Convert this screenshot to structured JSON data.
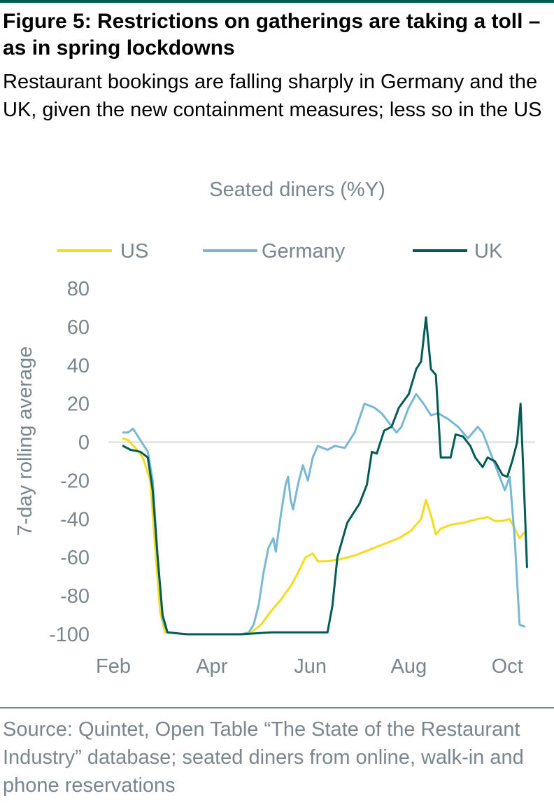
{
  "header": {
    "title": "Figure 5: Restrictions on gatherings are taking a toll – as in spring lockdowns",
    "subtitle": "Restaurant bookings are falling sharply in Germany and the UK, given the new containment measures; less so in the US"
  },
  "footer": {
    "source": "Source: Quintet, Open Table “The State of the Restaurant Industry” database; seated diners from online, walk-in and phone reservations"
  },
  "colors": {
    "rule": "#005c55",
    "text_gray": "#7b868c",
    "zero_line": "#d9d9d9"
  },
  "chart_data": {
    "type": "line",
    "title": "Seated diners (%Y)",
    "ylabel": "7-day rolling average",
    "xlabel": "",
    "ylim": [
      -100,
      80
    ],
    "yticks": [
      80,
      60,
      40,
      20,
      0,
      -20,
      -40,
      -60,
      -80,
      -100
    ],
    "xlim": [
      0,
      8.1
    ],
    "xticks": [
      {
        "label": "Feb",
        "x": 0
      },
      {
        "label": "Apr",
        "x": 2
      },
      {
        "label": "Jun",
        "x": 4
      },
      {
        "label": "Aug",
        "x": 6
      },
      {
        "label": "Oct",
        "x": 8
      }
    ],
    "grid": false,
    "legend_position": "top",
    "series": [
      {
        "name": "US",
        "color": "#f5dc1e",
        "points": [
          [
            0.2,
            2
          ],
          [
            0.3,
            1
          ],
          [
            0.45,
            -3
          ],
          [
            0.6,
            -8
          ],
          [
            0.75,
            -20
          ],
          [
            0.85,
            -55
          ],
          [
            0.95,
            -88
          ],
          [
            1.05,
            -99
          ],
          [
            1.5,
            -100
          ],
          [
            2.6,
            -100
          ],
          [
            2.8,
            -99
          ],
          [
            3.0,
            -95
          ],
          [
            3.2,
            -88
          ],
          [
            3.4,
            -82
          ],
          [
            3.6,
            -75
          ],
          [
            3.75,
            -68
          ],
          [
            3.9,
            -60
          ],
          [
            4.05,
            -58
          ],
          [
            4.15,
            -62
          ],
          [
            4.35,
            -62
          ],
          [
            4.6,
            -61
          ],
          [
            4.9,
            -59
          ],
          [
            5.2,
            -56
          ],
          [
            5.5,
            -53
          ],
          [
            5.8,
            -50
          ],
          [
            6.05,
            -46
          ],
          [
            6.25,
            -40
          ],
          [
            6.35,
            -30
          ],
          [
            6.45,
            -38
          ],
          [
            6.55,
            -48
          ],
          [
            6.65,
            -45
          ],
          [
            6.85,
            -43
          ],
          [
            7.1,
            -42
          ],
          [
            7.4,
            -40
          ],
          [
            7.6,
            -39
          ],
          [
            7.75,
            -41
          ],
          [
            7.9,
            -41
          ],
          [
            8.05,
            -40
          ],
          [
            8.15,
            -45
          ],
          [
            8.25,
            -50
          ],
          [
            8.35,
            -47
          ]
        ]
      },
      {
        "name": "Germany",
        "color": "#79b8d4",
        "points": [
          [
            0.2,
            5
          ],
          [
            0.3,
            5
          ],
          [
            0.4,
            7
          ],
          [
            0.5,
            3
          ],
          [
            0.6,
            -1
          ],
          [
            0.7,
            -5
          ],
          [
            0.8,
            -20
          ],
          [
            0.9,
            -60
          ],
          [
            1.0,
            -92
          ],
          [
            1.1,
            -99
          ],
          [
            1.5,
            -100
          ],
          [
            2.6,
            -100
          ],
          [
            2.75,
            -99
          ],
          [
            2.85,
            -95
          ],
          [
            2.95,
            -85
          ],
          [
            3.05,
            -68
          ],
          [
            3.15,
            -55
          ],
          [
            3.25,
            -50
          ],
          [
            3.3,
            -57
          ],
          [
            3.4,
            -38
          ],
          [
            3.5,
            -22
          ],
          [
            3.55,
            -18
          ],
          [
            3.6,
            -30
          ],
          [
            3.65,
            -35
          ],
          [
            3.75,
            -22
          ],
          [
            3.85,
            -12
          ],
          [
            3.95,
            -20
          ],
          [
            4.05,
            -8
          ],
          [
            4.15,
            -2
          ],
          [
            4.35,
            -4
          ],
          [
            4.5,
            -2
          ],
          [
            4.7,
            -3
          ],
          [
            4.9,
            5
          ],
          [
            5.1,
            20
          ],
          [
            5.3,
            18
          ],
          [
            5.45,
            15
          ],
          [
            5.6,
            10
          ],
          [
            5.75,
            5
          ],
          [
            5.85,
            8
          ],
          [
            6.0,
            18
          ],
          [
            6.15,
            25
          ],
          [
            6.3,
            20
          ],
          [
            6.45,
            14
          ],
          [
            6.6,
            15
          ],
          [
            6.8,
            12
          ],
          [
            7.0,
            8
          ],
          [
            7.2,
            2
          ],
          [
            7.4,
            8
          ],
          [
            7.5,
            5
          ],
          [
            7.65,
            -5
          ],
          [
            7.8,
            -15
          ],
          [
            7.95,
            -25
          ],
          [
            8.05,
            -18
          ],
          [
            8.15,
            -50
          ],
          [
            8.25,
            -95
          ],
          [
            8.35,
            -96
          ]
        ]
      },
      {
        "name": "UK",
        "color": "#005c55",
        "points": [
          [
            0.2,
            -2
          ],
          [
            0.35,
            -4
          ],
          [
            0.55,
            -5
          ],
          [
            0.7,
            -8
          ],
          [
            0.8,
            -25
          ],
          [
            0.9,
            -60
          ],
          [
            1.0,
            -90
          ],
          [
            1.1,
            -99
          ],
          [
            1.5,
            -100
          ],
          [
            2.6,
            -100
          ],
          [
            3.2,
            -99
          ],
          [
            3.8,
            -99
          ],
          [
            4.35,
            -99
          ],
          [
            4.45,
            -85
          ],
          [
            4.55,
            -60
          ],
          [
            4.75,
            -42
          ],
          [
            5.0,
            -32
          ],
          [
            5.15,
            -22
          ],
          [
            5.25,
            -5
          ],
          [
            5.35,
            -6
          ],
          [
            5.5,
            6
          ],
          [
            5.65,
            8
          ],
          [
            5.8,
            18
          ],
          [
            6.0,
            25
          ],
          [
            6.15,
            38
          ],
          [
            6.25,
            42
          ],
          [
            6.35,
            65
          ],
          [
            6.45,
            38
          ],
          [
            6.55,
            35
          ],
          [
            6.65,
            -8
          ],
          [
            6.75,
            -8
          ],
          [
            6.85,
            -8
          ],
          [
            6.95,
            4
          ],
          [
            7.1,
            3
          ],
          [
            7.25,
            -2
          ],
          [
            7.35,
            -8
          ],
          [
            7.5,
            -13
          ],
          [
            7.6,
            -8
          ],
          [
            7.75,
            -10
          ],
          [
            7.9,
            -17
          ],
          [
            8.0,
            -18
          ],
          [
            8.1,
            -10
          ],
          [
            8.2,
            0
          ],
          [
            8.27,
            20
          ],
          [
            8.35,
            -30
          ],
          [
            8.4,
            -65
          ]
        ]
      }
    ]
  }
}
